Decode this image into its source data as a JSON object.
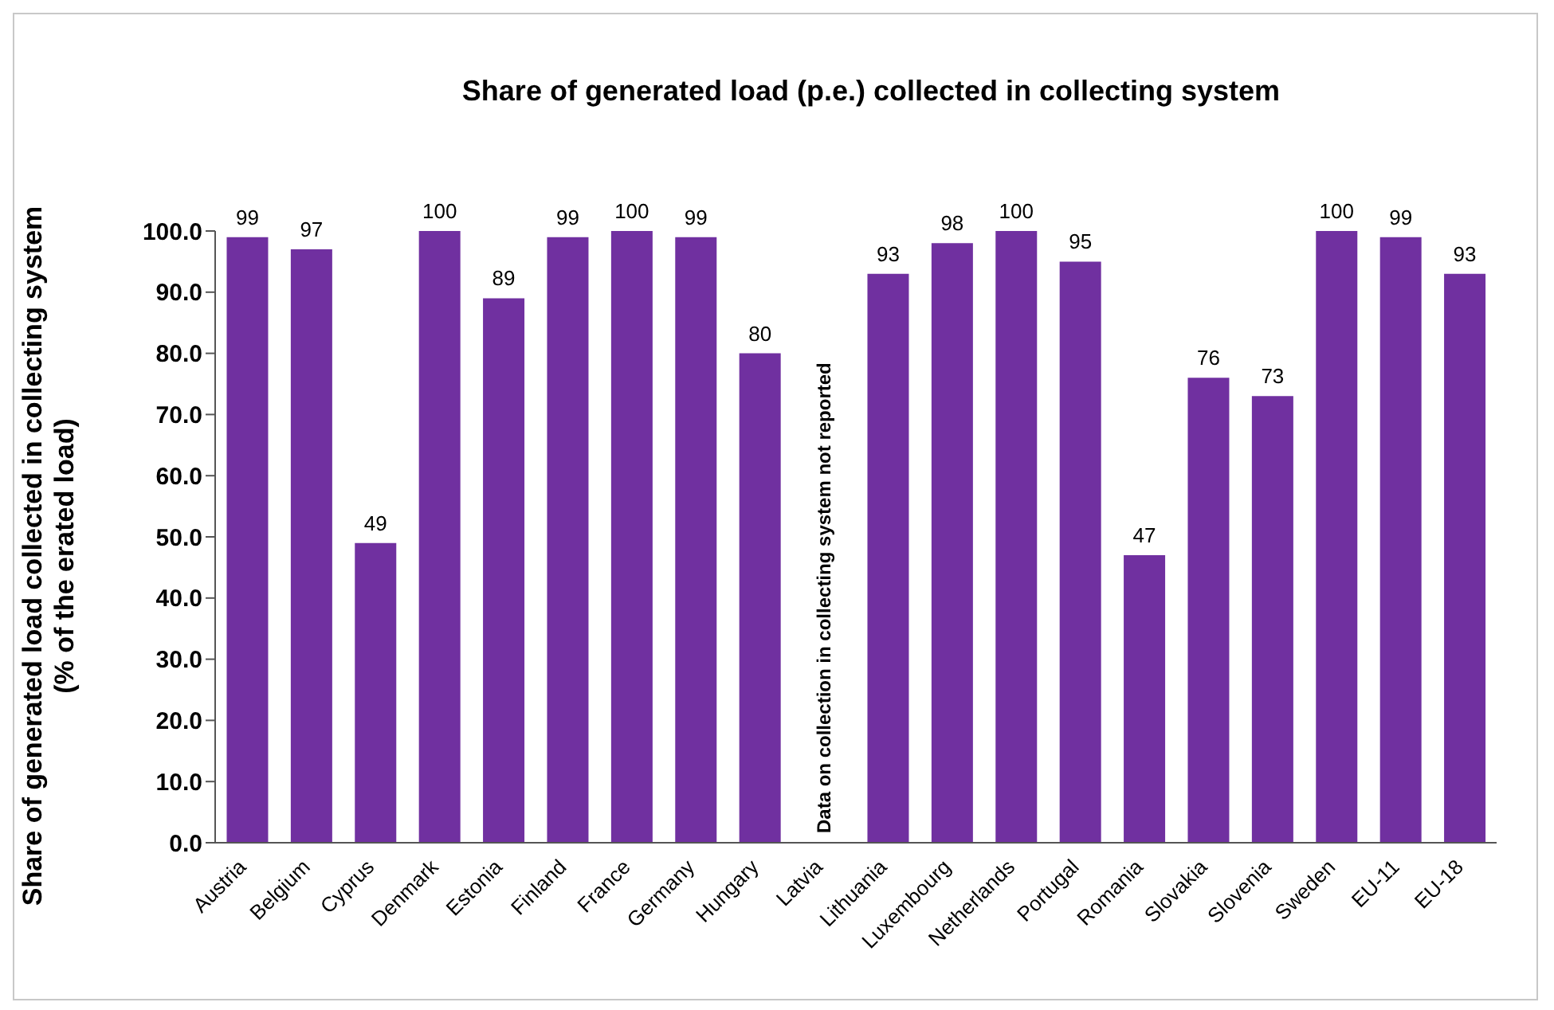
{
  "chart_data": {
    "type": "bar",
    "title": "Share of generated load (p.e.) collected in collecting system",
    "ylabel": "Share of generated load collected in collecting system\n(% of the erated load)",
    "categories": [
      "Austria",
      "Belgium",
      "Cyprus",
      "Denmark",
      "Estonia",
      "Finland",
      "France",
      "Germany",
      "Hungary",
      "Latvia",
      "Lithuania",
      "Luxembourg",
      "Netherlands",
      "Portugal",
      "Romania",
      "Slovakia",
      "Slovenia",
      "Sweden",
      "EU-11",
      "EU-18"
    ],
    "values": [
      99,
      97,
      49,
      100,
      89,
      99,
      100,
      99,
      80,
      null,
      93,
      98,
      100,
      95,
      47,
      76,
      73,
      100,
      99,
      93
    ],
    "color": "#7030a0",
    "data_labels": true,
    "grid": false,
    "legend": false,
    "ylim": [
      0,
      100
    ],
    "yticks": [
      {
        "value": 0,
        "label": "0.0"
      },
      {
        "value": 10,
        "label": "10.0"
      },
      {
        "value": 20,
        "label": "20.0"
      },
      {
        "value": 30,
        "label": "30.0"
      },
      {
        "value": 40,
        "label": "40.0"
      },
      {
        "value": 50,
        "label": "50.0"
      },
      {
        "value": 60,
        "label": "60.0"
      },
      {
        "value": 70,
        "label": "70.0"
      },
      {
        "value": 80,
        "label": "80.0"
      },
      {
        "value": 90,
        "label": "90.0"
      },
      {
        "value": 100,
        "label": "100.0"
      }
    ],
    "annotations": [
      "Data on collection in collecting system not reported"
    ]
  }
}
